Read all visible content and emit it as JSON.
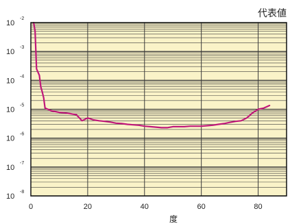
{
  "chart_data": {
    "type": "line",
    "title": "代表値",
    "xlabel": "度",
    "ylabel": "",
    "xlim": [
      0,
      90
    ],
    "x_ticks": [
      0,
      20,
      40,
      60,
      80
    ],
    "ylim": [
      1e-08,
      0.01
    ],
    "y_scale": "log",
    "y_ticks": [
      {
        "base": "10",
        "exp": "-2"
      },
      {
        "base": "10",
        "exp": "-3"
      },
      {
        "base": "10",
        "exp": "-4"
      },
      {
        "base": "10",
        "exp": "-5"
      },
      {
        "base": "10",
        "exp": "-6"
      },
      {
        "base": "10",
        "exp": "-7"
      },
      {
        "base": "10",
        "exp": "-8"
      }
    ],
    "grid": true,
    "colors": {
      "plot_background": "#faf3c8",
      "grid": "#3a3a3a",
      "line": "#c0187a"
    },
    "series": [
      {
        "x": [
          1,
          1.5,
          2,
          3,
          3.5,
          4,
          4.5,
          5,
          7,
          8,
          10,
          12,
          14,
          16,
          18,
          20,
          22,
          24,
          26,
          28,
          30,
          32,
          34,
          36,
          38,
          40,
          42,
          44,
          46,
          48,
          50,
          52,
          54,
          56,
          58,
          60,
          62,
          64,
          66,
          68,
          70,
          72,
          74,
          76,
          78,
          80,
          82,
          84
        ],
        "y": [
          0.01,
          0.005,
          0.00025,
          0.00015,
          6e-05,
          4e-05,
          2.5e-05,
          1.1e-05,
          9e-06,
          8.5e-06,
          7.8e-06,
          7.5e-06,
          7e-06,
          6.5e-06,
          4e-06,
          5e-06,
          4.3e-06,
          4e-06,
          3.8e-06,
          3.6e-06,
          3.3e-06,
          3.2e-06,
          3e-06,
          2.9e-06,
          2.8e-06,
          2.6e-06,
          2.5e-06,
          2.4e-06,
          2.3e-06,
          2.3e-06,
          2.5e-06,
          2.5e-06,
          2.5e-06,
          2.6e-06,
          2.6e-06,
          2.6e-06,
          2.7e-06,
          2.8e-06,
          3e-06,
          3.2e-06,
          3.5e-06,
          3.8e-06,
          4e-06,
          5e-06,
          7.5e-06,
          1e-05,
          1.1e-05,
          1.35e-05
        ]
      }
    ]
  }
}
